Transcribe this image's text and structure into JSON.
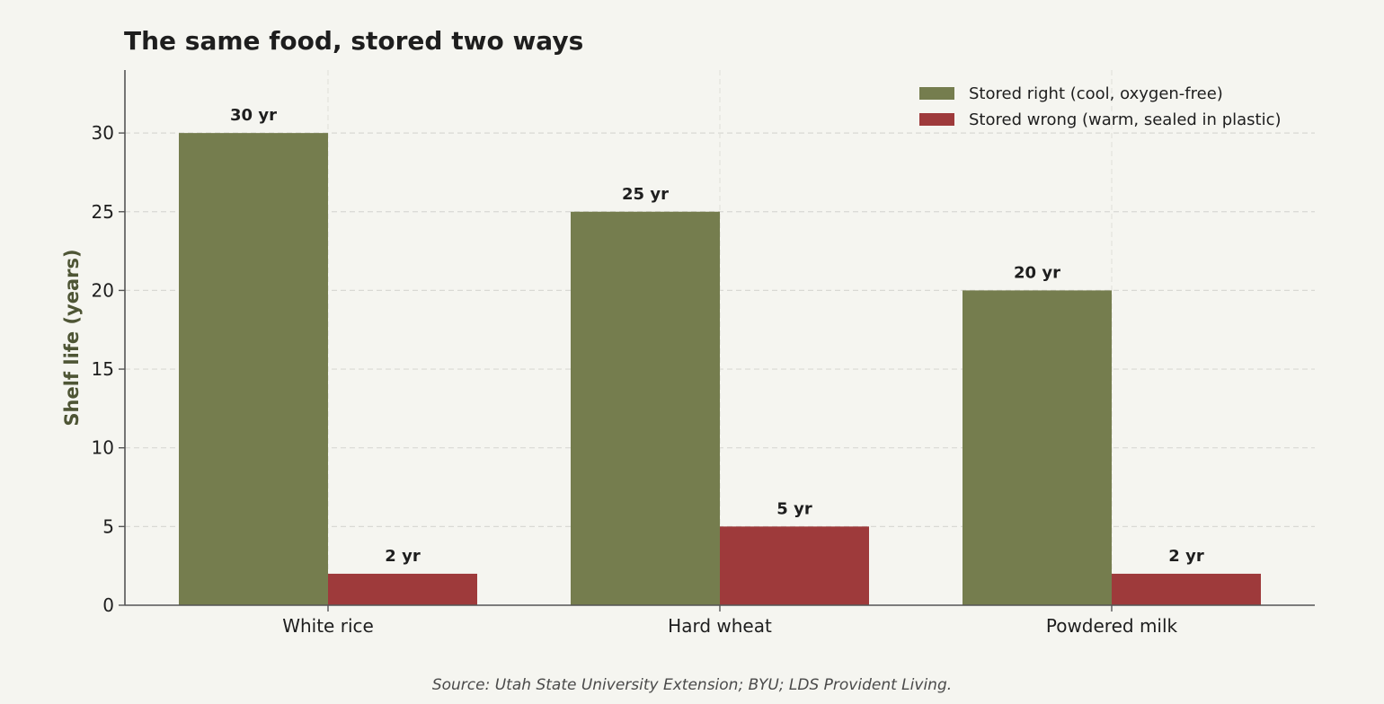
{
  "chart_data": {
    "type": "bar",
    "title": "The same food, stored two ways",
    "xlabel": "",
    "ylabel": "Shelf life (years)",
    "categories": [
      "White rice",
      "Hard wheat",
      "Powdered milk"
    ],
    "series": [
      {
        "name": "Stored right (cool, oxygen-free)",
        "color": "#757d4e",
        "values": [
          30,
          25,
          20
        ],
        "labels": [
          "30 yr",
          "25 yr",
          "20 yr"
        ]
      },
      {
        "name": "Stored wrong (warm, sealed in plastic)",
        "color": "#9e3a3b",
        "values": [
          2,
          5,
          2
        ],
        "labels": [
          "2 yr",
          "5 yr",
          "2 yr"
        ]
      }
    ],
    "ylim": [
      0,
      34
    ],
    "yticks": [
      0,
      5,
      10,
      15,
      20,
      25,
      30
    ],
    "grid": true,
    "legend_position": "top-right",
    "source": "Source: Utah State University Extension; BYU; LDS Provident Living.",
    "ylabel_color": "#4e5535"
  }
}
